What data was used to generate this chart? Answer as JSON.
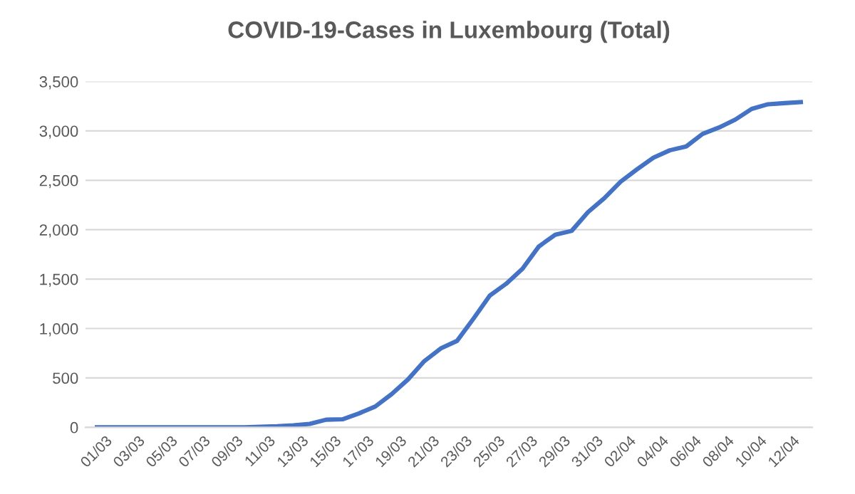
{
  "chart_data": {
    "type": "line",
    "title": "COVID-19-Cases in Luxembourg (Total)",
    "categories": [
      "01/03",
      null,
      "03/03",
      null,
      "05/03",
      null,
      "07/03",
      null,
      "09/03",
      null,
      "11/03",
      null,
      "13/03",
      null,
      "15/03",
      null,
      "17/03",
      null,
      "19/03",
      null,
      "21/03",
      null,
      "23/03",
      null,
      "25/03",
      null,
      "27/03",
      null,
      "29/03",
      null,
      "31/03",
      null,
      "02/04",
      null,
      "04/04",
      null,
      "06/04",
      null,
      "08/04",
      null,
      "10/04",
      null,
      "12/04",
      null
    ],
    "series": [
      {
        "color": "#4472c4",
        "values": [
          0,
          0,
          0,
          0,
          0,
          0,
          0,
          0,
          0,
          0,
          5,
          10,
          20,
          35,
          77,
          81,
          140,
          210,
          335,
          484,
          670,
          798,
          875,
          1099,
          1333,
          1453,
          1605,
          1831,
          1950,
          1988,
          2178,
          2319,
          2487,
          2612,
          2729,
          2804,
          2843,
          2970,
          3034,
          3115,
          3223,
          3270,
          3281,
          3292
        ]
      }
    ],
    "ylim": [
      0,
      3500
    ],
    "yticks": [
      {
        "value": 0,
        "label": "0"
      },
      {
        "value": 500,
        "label": "500"
      },
      {
        "value": 1000,
        "label": "1,000"
      },
      {
        "value": 1500,
        "label": "1,500"
      },
      {
        "value": 2000,
        "label": "2,000"
      },
      {
        "value": 2500,
        "label": "2,500"
      },
      {
        "value": 3000,
        "label": "3,000"
      },
      {
        "value": 3500,
        "label": "3,500"
      }
    ],
    "grid": "y",
    "legend": false,
    "marker": "none",
    "line_style": "solid"
  }
}
